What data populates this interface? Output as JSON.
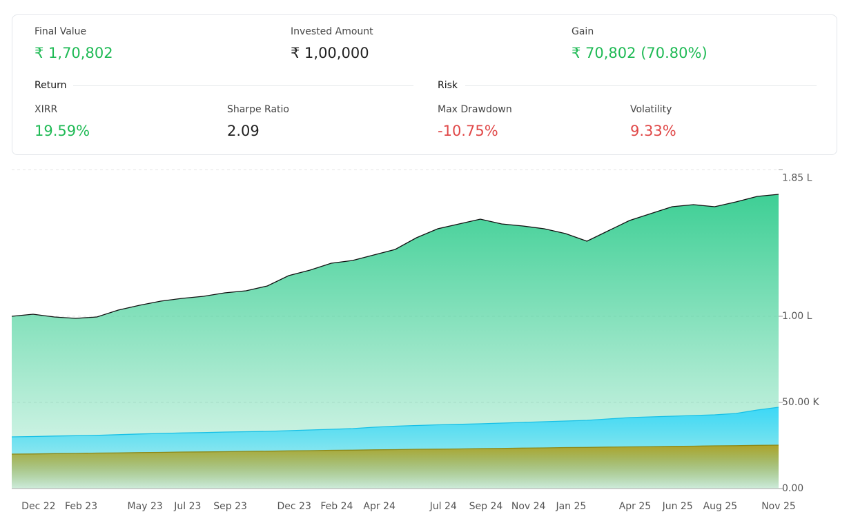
{
  "summary": {
    "final_value": {
      "label": "Final Value",
      "value": "₹ 1,70,802"
    },
    "invested": {
      "label": "Invested Amount",
      "value": "₹ 1,00,000"
    },
    "gain": {
      "label": "Gain",
      "value": "₹ 70,802 (70.80%)"
    },
    "return": {
      "title": "Return",
      "xirr": {
        "label": "XIRR",
        "value": "19.59%"
      },
      "sharpe": {
        "label": "Sharpe Ratio",
        "value": "2.09"
      }
    },
    "risk": {
      "title": "Risk",
      "max_drawdown": {
        "label": "Max Drawdown",
        "value": "-10.75%"
      },
      "volatility": {
        "label": "Volatility",
        "value": "9.33%"
      }
    }
  },
  "chart_data": {
    "type": "area",
    "categories": [
      null,
      "Dec 22",
      null,
      "Feb 23",
      null,
      null,
      "May 23",
      null,
      "Jul 23",
      null,
      "Sep 23",
      null,
      null,
      "Dec 23",
      null,
      "Feb 24",
      null,
      "Apr 24",
      null,
      null,
      "Jul 24",
      null,
      "Sep 24",
      null,
      "Nov 24",
      null,
      "Jan 25",
      null,
      null,
      "Apr 25",
      null,
      "Jun 25",
      null,
      "Aug 25",
      null,
      null,
      "Nov 25"
    ],
    "series": [
      {
        "color": "#3ecf95",
        "line_color": "#111111",
        "values": [
          100000,
          101200,
          99600,
          98800,
          99600,
          103600,
          106400,
          108800,
          110400,
          111600,
          113600,
          114800,
          117600,
          123600,
          126800,
          130800,
          132400,
          135600,
          138800,
          145600,
          150800,
          153600,
          156400,
          153600,
          152400,
          150800,
          148000,
          143600,
          149600,
          155600,
          159600,
          163600,
          164800,
          163600,
          166400,
          169600,
          170800
        ]
      },
      {
        "color": "#3dd8f7",
        "line_color": "#17c0e6",
        "values": [
          30000,
          30200,
          30500,
          30700,
          30900,
          31300,
          31700,
          32000,
          32300,
          32500,
          32800,
          33000,
          33200,
          33600,
          34000,
          34400,
          34800,
          35600,
          36200,
          36600,
          37000,
          37300,
          37600,
          38000,
          38400,
          38800,
          39200,
          39600,
          40400,
          41200,
          41600,
          42000,
          42400,
          42800,
          43600,
          45600,
          47200
        ]
      },
      {
        "color": "#aea42a",
        "line_color": "#8c8818",
        "values": [
          20000,
          20100,
          20300,
          20400,
          20600,
          20700,
          20900,
          21000,
          21200,
          21300,
          21400,
          21600,
          21700,
          21900,
          22000,
          22200,
          22300,
          22500,
          22600,
          22800,
          22900,
          23000,
          23200,
          23300,
          23500,
          23600,
          23800,
          23900,
          24100,
          24200,
          24300,
          24500,
          24600,
          24800,
          24900,
          25100,
          25200
        ]
      }
    ],
    "ylim": [
      0,
      185000
    ],
    "yticks": [
      {
        "value": 0,
        "label": "0.00"
      },
      {
        "value": 50000,
        "label": "50.00 K"
      },
      {
        "value": 100000,
        "label": "1.00 L"
      },
      {
        "value": 185000,
        "label": "1.85 L"
      }
    ],
    "grid": true
  }
}
